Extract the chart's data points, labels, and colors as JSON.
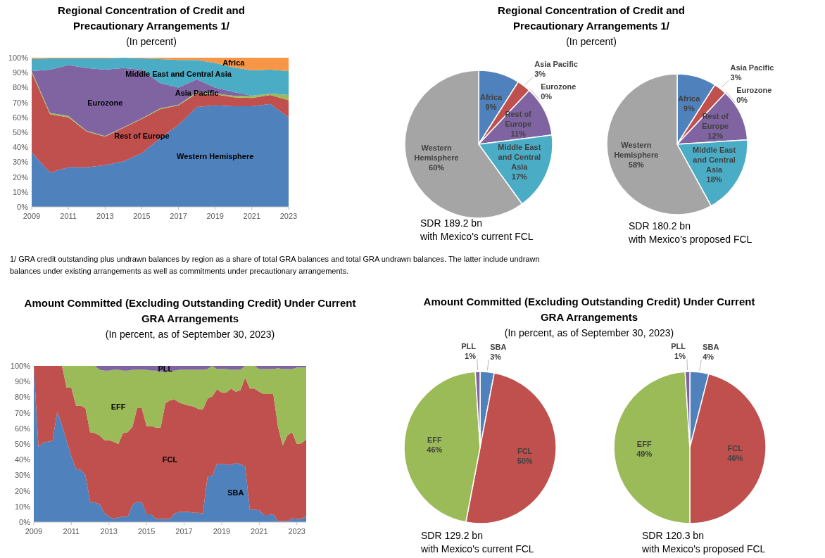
{
  "chart_data": [
    {
      "type": "area",
      "title": "Regional Concentration of Credit and Precautionary Arrangements 1/",
      "subtitle": "(In percent)",
      "annotations": [
        "1/ GRA credit outstanding plus undrawn balances by region as a share of total GRA balances and total GRA undrawn balances. The latter include undrawn balances under existing arrangements as well as commitments under precautionary arrangements."
      ],
      "stacked": true,
      "x": [
        2009,
        2010,
        2011,
        2012,
        2013,
        2014,
        2015,
        2016,
        2017,
        2018,
        2019,
        2020,
        2021,
        2022,
        2023
      ],
      "xlim": [
        2009,
        2023
      ],
      "xticks": [
        2009,
        2011,
        2013,
        2015,
        2017,
        2019,
        2021,
        2023
      ],
      "ylim": [
        0,
        100
      ],
      "yticks": [
        {
          "value": 0,
          "label": "0%"
        },
        {
          "value": 10,
          "label": "10%"
        },
        {
          "value": 20,
          "label": "20%"
        },
        {
          "value": 30,
          "label": "30%"
        },
        {
          "value": 40,
          "label": "40%"
        },
        {
          "value": 50,
          "label": "50%"
        },
        {
          "value": 60,
          "label": "60%"
        },
        {
          "value": 70,
          "label": "70%"
        },
        {
          "value": 80,
          "label": "80%"
        },
        {
          "value": 90,
          "label": "90%"
        },
        {
          "value": 100,
          "label": "100%"
        }
      ],
      "series": [
        {
          "name": "Western Hemisphere",
          "color": "#4f81bd",
          "values": [
            36.5,
            23,
            26.5,
            26.5,
            28,
            30.5,
            36,
            46,
            55,
            67,
            68,
            67.5,
            67.5,
            69,
            60
          ]
        },
        {
          "name": "Rest of Europe",
          "color": "#c0504d",
          "values": [
            53.5,
            39,
            33.5,
            24,
            19,
            22.5,
            23,
            19.5,
            13,
            9,
            7.5,
            6,
            5.5,
            6,
            11.5
          ]
        },
        {
          "name": "Asia Pacific",
          "color": "#9bbb59",
          "values": [
            1,
            1,
            1,
            0.5,
            0.5,
            0.3,
            0.3,
            0.5,
            0.5,
            1,
            0.5,
            1,
            1.5,
            1,
            3.5
          ]
        },
        {
          "name": "Eurozone",
          "color": "#8064a2",
          "values": [
            0,
            29,
            34,
            42,
            44.5,
            39.7,
            32.7,
            17,
            11.5,
            8.5,
            4,
            2.5,
            0,
            0,
            0
          ]
        },
        {
          "name": "Middle East and Central Asia",
          "color": "#4bacc6",
          "values": [
            8,
            7.5,
            4.5,
            6.5,
            7.5,
            7,
            7.5,
            16,
            18.5,
            13,
            16.5,
            16.5,
            17,
            16,
            16
          ]
        },
        {
          "name": "Africa",
          "color": "#f79646",
          "values": [
            1,
            0.5,
            0.5,
            0.5,
            0.5,
            0,
            0.5,
            1,
            1.5,
            1.5,
            3.5,
            6.5,
            8.5,
            8,
            9
          ]
        }
      ]
    },
    {
      "type": "pie",
      "title": "Regional Concentration of Credit and Precautionary Arrangements 1/",
      "subtitle": "(In percent)",
      "annotations": [
        "SDR 189.2 bn",
        "with Mexico's current FCL"
      ],
      "categories": [
        "Africa",
        "Asia Pacific",
        "Eurozone",
        "Rest of Europe",
        "Middle East and Central Asia",
        "Western Hemisphere"
      ],
      "values": [
        9,
        3,
        0,
        11,
        17,
        60
      ],
      "colors": [
        "#4f81bd",
        "#c0504d",
        null,
        "#8064a2",
        "#4bacc6",
        "#a5a5a5"
      ],
      "value_labels": [
        "9%",
        "3%",
        "0%",
        "11%",
        "17%",
        "60%"
      ]
    },
    {
      "type": "pie",
      "annotations": [
        "SDR 180.2 bn",
        "with Mexico's proposed FCL"
      ],
      "categories": [
        "Africa",
        "Asia Pacific",
        "Eurozone",
        "Rest of Europe",
        "Middle East and Central Asia",
        "Western Hemisphere"
      ],
      "values": [
        9,
        3,
        0,
        12,
        18,
        58
      ],
      "colors": [
        "#4f81bd",
        "#c0504d",
        null,
        "#8064a2",
        "#4bacc6",
        "#a5a5a5"
      ],
      "value_labels": [
        "9%",
        "3%",
        "0%",
        "12%",
        "18%",
        "58%"
      ]
    },
    {
      "type": "area",
      "title": "Amount Committed (Excluding Outstanding Credit) Under Current GRA Arrangements",
      "subtitle": "(In percent, as of September 30, 2023)",
      "stacked": true,
      "x": [
        2009,
        2009.25,
        2009.5,
        2009.75,
        2010,
        2010.25,
        2010.5,
        2010.75,
        2011,
        2011.25,
        2011.5,
        2011.75,
        2012,
        2012.25,
        2012.5,
        2012.75,
        2013,
        2013.25,
        2013.5,
        2013.75,
        2014,
        2014.25,
        2014.5,
        2014.75,
        2015,
        2015.25,
        2015.5,
        2015.75,
        2016,
        2016.25,
        2016.5,
        2016.75,
        2017,
        2017.25,
        2017.5,
        2017.75,
        2018,
        2018.25,
        2018.5,
        2018.75,
        2019,
        2019.25,
        2019.5,
        2019.75,
        2020,
        2020.25,
        2020.5,
        2020.75,
        2021,
        2021.25,
        2021.5,
        2021.75,
        2022,
        2022.25,
        2022.5,
        2022.75,
        2023,
        2023.25,
        2023.5
      ],
      "xlim": [
        2009,
        2023.5
      ],
      "xticks": [
        2009,
        2011,
        2013,
        2015,
        2017,
        2019,
        2021,
        2023
      ],
      "ylim": [
        0,
        100
      ],
      "yticks": [
        {
          "value": 0,
          "label": "0%"
        },
        {
          "value": 10,
          "label": "10%"
        },
        {
          "value": 20,
          "label": "20%"
        },
        {
          "value": 30,
          "label": "30%"
        },
        {
          "value": 40,
          "label": "40%"
        },
        {
          "value": 50,
          "label": "50%"
        },
        {
          "value": 60,
          "label": "60%"
        },
        {
          "value": 70,
          "label": "70%"
        },
        {
          "value": 80,
          "label": "80%"
        },
        {
          "value": 90,
          "label": "90%"
        },
        {
          "value": 100,
          "label": "100%"
        }
      ],
      "series": [
        {
          "name": "SBA",
          "color": "#4f81bd",
          "values": [
            100,
            48,
            51,
            51.5,
            52,
            71,
            62,
            52,
            42,
            34,
            33.5,
            30,
            13,
            12.5,
            11.5,
            6,
            3.5,
            2,
            3,
            3.5,
            3.5,
            11,
            13,
            13,
            5,
            5,
            2,
            2,
            2,
            2,
            5.5,
            6.5,
            6.5,
            6.5,
            6,
            6,
            5.5,
            29,
            29.5,
            37.5,
            37,
            37,
            36.5,
            38,
            37,
            35.5,
            8,
            8,
            7.5,
            4.5,
            4.5,
            5,
            0.5,
            1,
            0.5,
            2.5,
            2,
            2,
            4
          ]
        },
        {
          "name": "FCL",
          "color": "#c0504d",
          "values": [
            0,
            52,
            49,
            48.5,
            48,
            29,
            38,
            34,
            44,
            40.5,
            41,
            43,
            44.5,
            44.5,
            44,
            46.5,
            49,
            49.5,
            47,
            53.5,
            54,
            50,
            60,
            60,
            56.5,
            56.5,
            58.5,
            58.5,
            74,
            76,
            73,
            70,
            69,
            68,
            68,
            66.5,
            66.5,
            50,
            51,
            47.5,
            46,
            46,
            49,
            45.5,
            47.5,
            57,
            77.5,
            77.5,
            76,
            77.5,
            77.5,
            77,
            60.5,
            48,
            55,
            55,
            48,
            48.5,
            49
          ]
        },
        {
          "name": "EFF",
          "color": "#9bbb59",
          "values": [
            0,
            0,
            0,
            0,
            0,
            0,
            0,
            14,
            14,
            25.5,
            25.5,
            27,
            42.5,
            43,
            42,
            44.5,
            44.5,
            46,
            47.5,
            40,
            39.5,
            36.5,
            24.5,
            24.5,
            36,
            35.5,
            36.5,
            36,
            20,
            19,
            18.5,
            21,
            22,
            23,
            23.5,
            25,
            25.5,
            19,
            19.5,
            13,
            15,
            15,
            12,
            14,
            13,
            7.5,
            14.5,
            14.5,
            14.5,
            16,
            16,
            16,
            37.5,
            49,
            42.5,
            40.5,
            49,
            48.5,
            46
          ]
        },
        {
          "name": "PLL",
          "color": "#8064a2",
          "values": [
            0,
            0,
            0,
            0,
            0,
            0,
            0,
            0,
            0,
            0,
            0,
            0,
            0,
            0,
            2.5,
            3,
            3,
            2.5,
            2.5,
            3,
            3,
            2.5,
            2.5,
            2.5,
            2.5,
            3,
            3,
            3.5,
            4,
            3,
            3,
            2.5,
            2.5,
            2.5,
            2.5,
            2.5,
            2.5,
            2,
            0,
            2,
            2,
            2,
            2.5,
            2.5,
            2.5,
            0,
            0,
            0,
            2,
            2,
            2,
            2,
            1.5,
            2,
            2,
            2,
            1,
            1,
            1
          ]
        }
      ]
    },
    {
      "type": "pie",
      "title": "Amount Committed (Excluding Outstanding Credit) Under Current GRA Arrangements",
      "subtitle": "(In percent, as of September 30, 2023)",
      "annotations": [
        "SDR 129.2 bn",
        "with Mexico's current FCL"
      ],
      "categories": [
        "SBA",
        "FCL",
        "EFF",
        "PLL"
      ],
      "values": [
        3,
        50,
        46,
        1
      ],
      "colors": [
        "#4f81bd",
        "#c0504d",
        "#9bbb59",
        "#8064a2"
      ],
      "value_labels": [
        "3%",
        "50%",
        "46%",
        "1%"
      ]
    },
    {
      "type": "pie",
      "annotations": [
        "SDR 120.3 bn",
        "with Mexico's proposed FCL"
      ],
      "categories": [
        "SBA",
        "FCL",
        "EFF",
        "PLL"
      ],
      "values": [
        4,
        46,
        49,
        1
      ],
      "colors": [
        "#4f81bd",
        "#c0504d",
        "#9bbb59",
        "#8064a2"
      ],
      "value_labels": [
        "4%",
        "46%",
        "49%",
        "1%"
      ]
    }
  ]
}
